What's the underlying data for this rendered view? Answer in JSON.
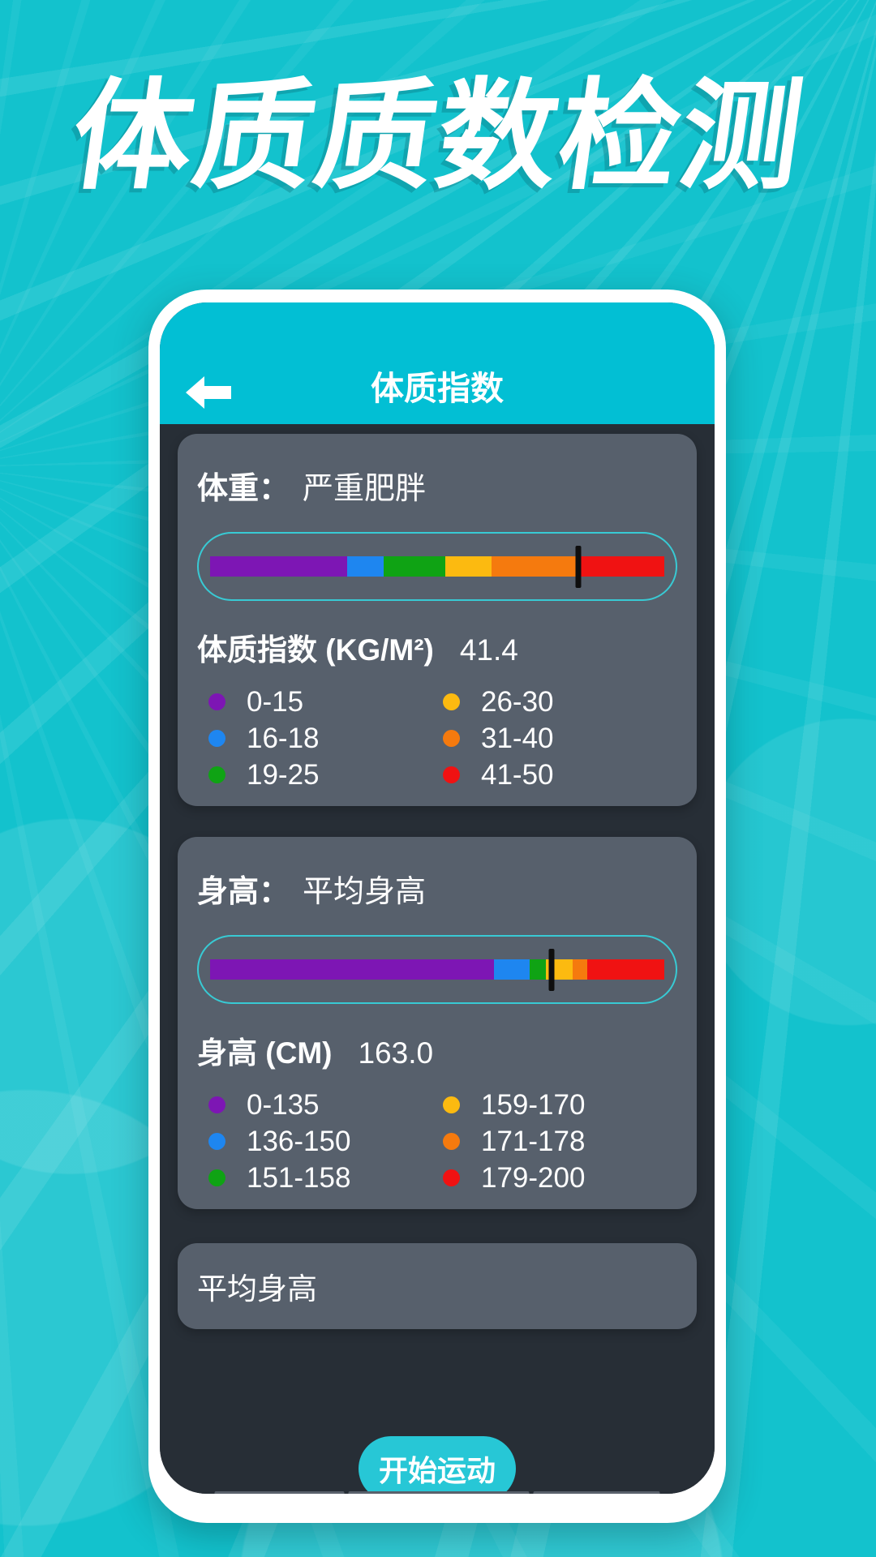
{
  "hero_title": "体质质数检测",
  "header": {
    "title": "体质指数",
    "back_icon": "arrow-left"
  },
  "cards": {
    "weight": {
      "label": "体重：",
      "status": "严重肥胖",
      "metric_label": "体质指数 (KG/M²)",
      "metric_value": "41.4",
      "marker_pct": 81,
      "segments": [
        {
          "color": "#7d16b4",
          "pct": 30.2
        },
        {
          "color": "#1e86f0",
          "pct": 8.1
        },
        {
          "color": "#0fa314",
          "pct": 13.5
        },
        {
          "color": "#fcba10",
          "pct": 10.2
        },
        {
          "color": "#f57a0e",
          "pct": 19.0
        },
        {
          "color": "#f01212",
          "pct": 19.0
        }
      ],
      "legend": [
        {
          "color": "#7d16b4",
          "label": "0-15"
        },
        {
          "color": "#1e86f0",
          "label": "16-18"
        },
        {
          "color": "#0fa314",
          "label": "19-25"
        },
        {
          "color": "#fcba10",
          "label": "26-30"
        },
        {
          "color": "#f57a0e",
          "label": "31-40"
        },
        {
          "color": "#f01212",
          "label": "41-50"
        }
      ]
    },
    "height": {
      "label": "身高：",
      "status": "平均身高",
      "metric_label": "身高 (CM)",
      "metric_value": "163.0",
      "marker_pct": 75.2,
      "segments": [
        {
          "color": "#7d16b4",
          "pct": 62.5
        },
        {
          "color": "#1e86f0",
          "pct": 7.9
        },
        {
          "color": "#0fa314",
          "pct": 3.5
        },
        {
          "color": "#fcba10",
          "pct": 6.0
        },
        {
          "color": "#f57a0e",
          "pct": 3.2
        },
        {
          "color": "#f01212",
          "pct": 16.9
        }
      ],
      "legend": [
        {
          "color": "#7d16b4",
          "label": "0-135"
        },
        {
          "color": "#1e86f0",
          "label": "136-150"
        },
        {
          "color": "#0fa314",
          "label": "151-158"
        },
        {
          "color": "#fcba10",
          "label": "159-170"
        },
        {
          "color": "#f57a0e",
          "label": "171-178"
        },
        {
          "color": "#f01212",
          "label": "179-200"
        }
      ]
    },
    "summary": {
      "text": "平均身高"
    }
  },
  "start_button": {
    "label": "开始运动"
  },
  "colors": {
    "page_background": "#13c2cd",
    "header_background": "#02bfd4",
    "screen_background": "#272e36",
    "card_background": "#57606c",
    "bar_outline": "#38cad4",
    "marker": "#0e0e0e",
    "button_background": "#27c7d6"
  }
}
